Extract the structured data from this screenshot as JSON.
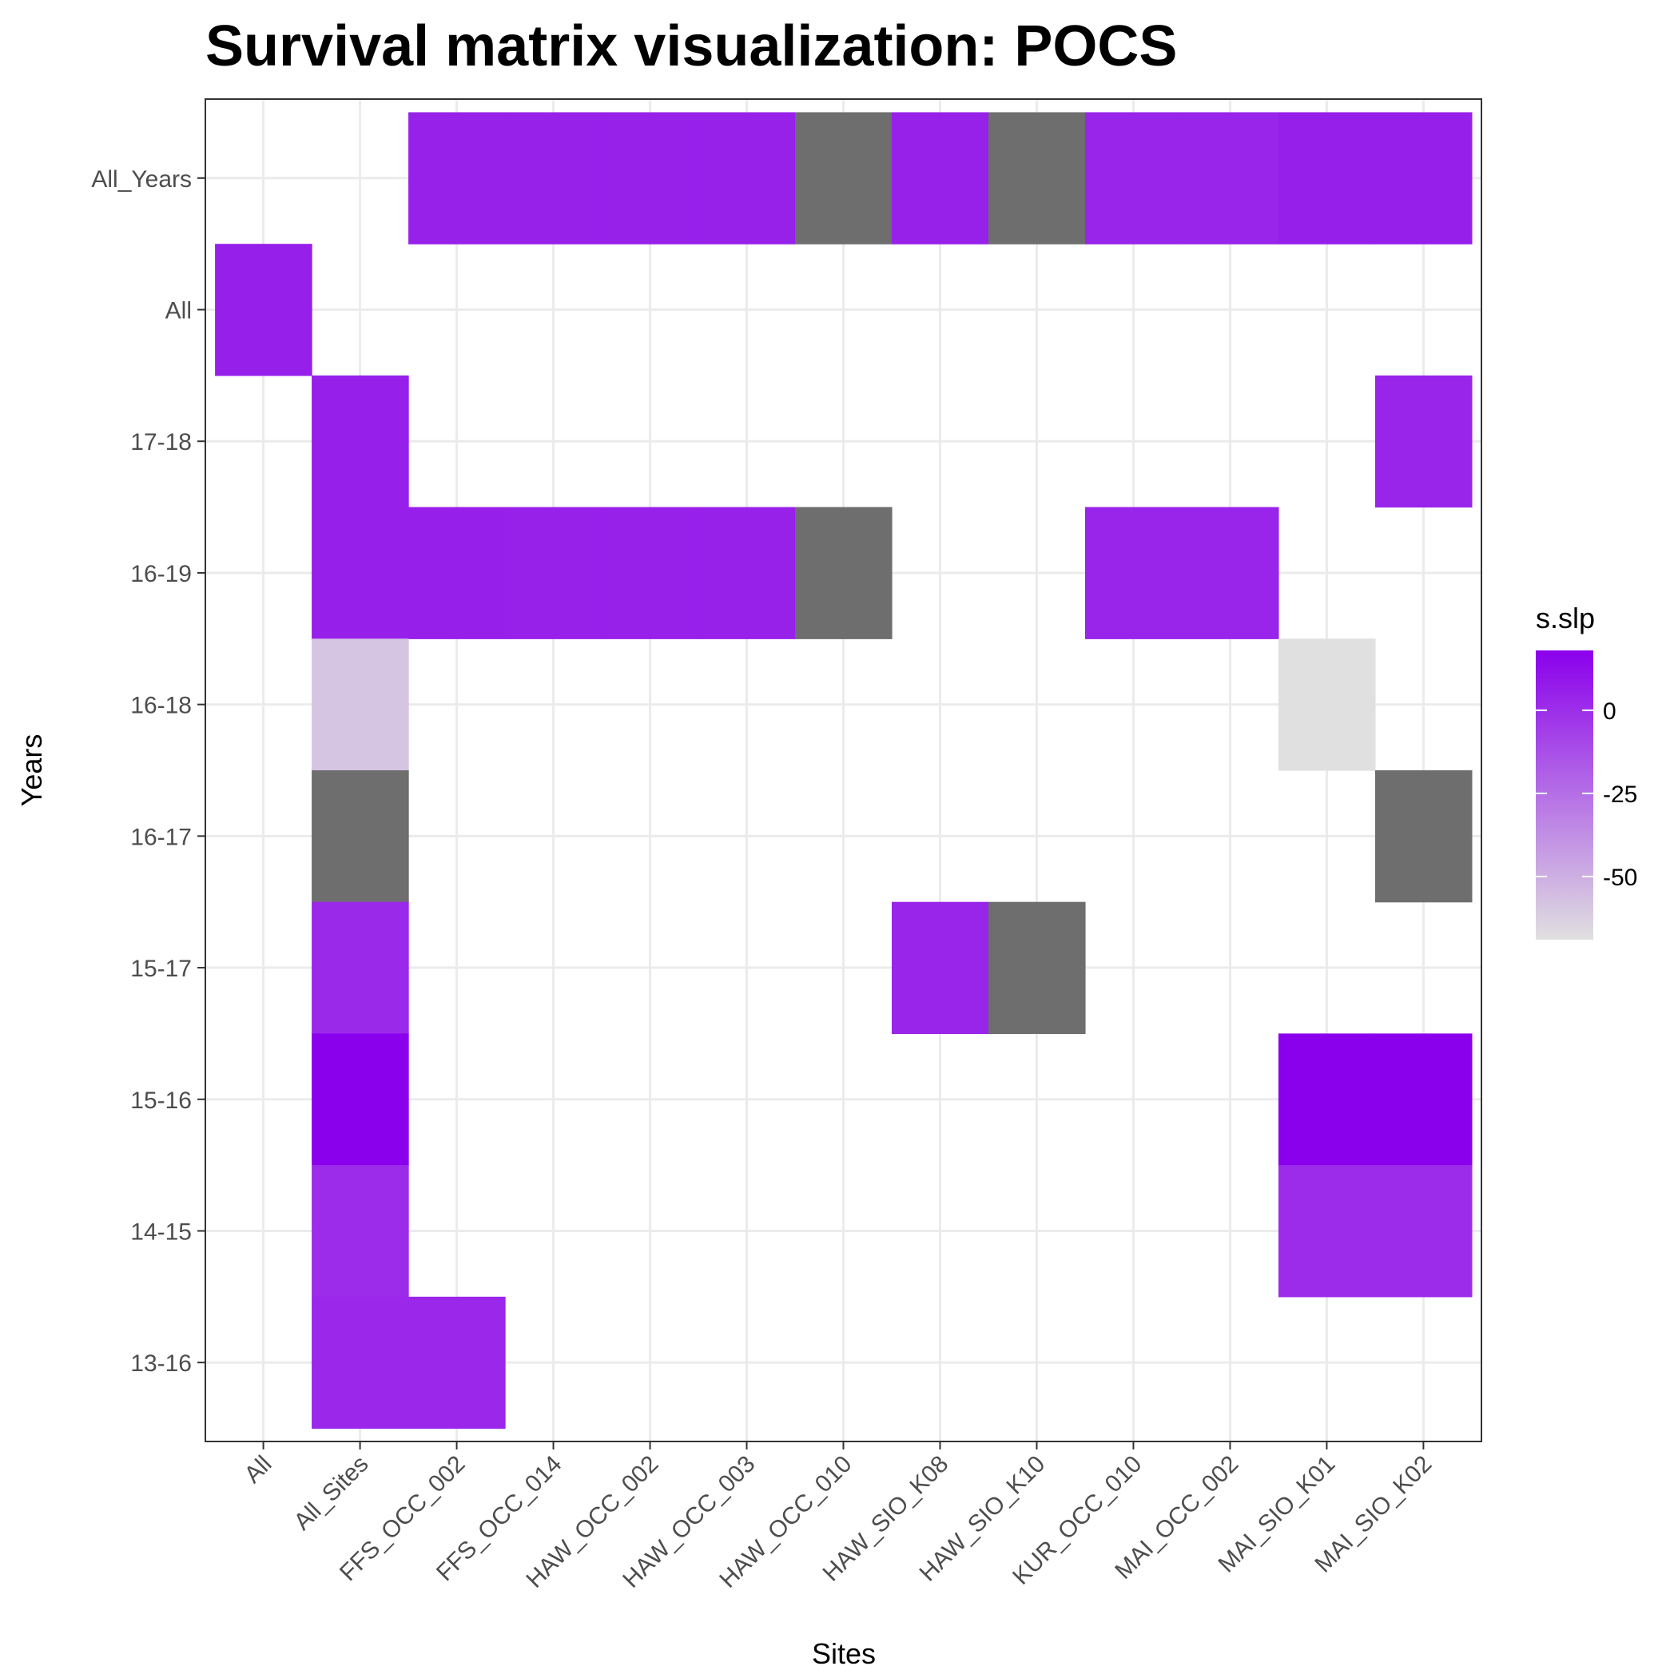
{
  "chart_data": {
    "type": "heatmap",
    "title": "Survival matrix visualization: POCS",
    "xlabel": "Sites",
    "ylabel": "Years",
    "x_categories": [
      "All",
      "All_Sites",
      "FFS_OCC_002",
      "FFS_OCC_014",
      "HAW_OCC_002",
      "HAW_OCC_003",
      "HAW_OCC_010",
      "HAW_SIO_K08",
      "HAW_SIO_K10",
      "KUR_OCC_010",
      "MAI_OCC_002",
      "MAI_SIO_K01",
      "MAI_SIO_K02"
    ],
    "y_categories": [
      "13-16",
      "14-15",
      "15-16",
      "15-17",
      "16-17",
      "16-18",
      "16-19",
      "17-18",
      "All",
      "All_Years"
    ],
    "legend": {
      "title": "s.slp",
      "breaks": [
        0,
        -25,
        -50
      ],
      "break_labels": [
        "0",
        "-25",
        "-50"
      ],
      "limits": [
        -69,
        18
      ],
      "low_color": "#e0e0e0",
      "high_color": "#8b00ec",
      "na_color": "#6e6e6e",
      "position": "right"
    },
    "grid": true,
    "cells": [
      {
        "x": "FFS_OCC_002",
        "y": "All_Years",
        "value": 5
      },
      {
        "x": "FFS_OCC_014",
        "y": "All_Years",
        "value": 5
      },
      {
        "x": "HAW_OCC_002",
        "y": "All_Years",
        "value": 5
      },
      {
        "x": "HAW_OCC_003",
        "y": "All_Years",
        "value": 5
      },
      {
        "x": "HAW_OCC_010",
        "y": "All_Years",
        "value": null
      },
      {
        "x": "HAW_SIO_K08",
        "y": "All_Years",
        "value": 5
      },
      {
        "x": "HAW_SIO_K10",
        "y": "All_Years",
        "value": null
      },
      {
        "x": "KUR_OCC_010",
        "y": "All_Years",
        "value": 4
      },
      {
        "x": "MAI_OCC_002",
        "y": "All_Years",
        "value": 4
      },
      {
        "x": "MAI_SIO_K01",
        "y": "All_Years",
        "value": 6
      },
      {
        "x": "MAI_SIO_K02",
        "y": "All_Years",
        "value": 6
      },
      {
        "x": "All",
        "y": "All",
        "value": 6
      },
      {
        "x": "All_Sites",
        "y": "17-18",
        "value": 6
      },
      {
        "x": "MAI_SIO_K02",
        "y": "17-18",
        "value": 4
      },
      {
        "x": "All_Sites",
        "y": "16-19",
        "value": 6
      },
      {
        "x": "FFS_OCC_002",
        "y": "16-19",
        "value": 6
      },
      {
        "x": "FFS_OCC_014",
        "y": "16-19",
        "value": 5
      },
      {
        "x": "HAW_OCC_002",
        "y": "16-19",
        "value": 5
      },
      {
        "x": "HAW_OCC_003",
        "y": "16-19",
        "value": 5
      },
      {
        "x": "HAW_OCC_010",
        "y": "16-19",
        "value": null
      },
      {
        "x": "KUR_OCC_010",
        "y": "16-19",
        "value": 4
      },
      {
        "x": "MAI_OCC_002",
        "y": "16-19",
        "value": 4
      },
      {
        "x": "All_Sites",
        "y": "16-18",
        "value": -58
      },
      {
        "x": "MAI_SIO_K01",
        "y": "16-18",
        "value": -69
      },
      {
        "x": "All_Sites",
        "y": "16-17",
        "value": null
      },
      {
        "x": "MAI_SIO_K02",
        "y": "16-17",
        "value": null
      },
      {
        "x": "All_Sites",
        "y": "15-17",
        "value": 2
      },
      {
        "x": "HAW_SIO_K08",
        "y": "15-17",
        "value": 4
      },
      {
        "x": "HAW_SIO_K10",
        "y": "15-17",
        "value": null
      },
      {
        "x": "All_Sites",
        "y": "15-16",
        "value": 18
      },
      {
        "x": "MAI_SIO_K01",
        "y": "15-16",
        "value": 18
      },
      {
        "x": "MAI_SIO_K02",
        "y": "15-16",
        "value": 18
      },
      {
        "x": "All_Sites",
        "y": "14-15",
        "value": 1
      },
      {
        "x": "MAI_SIO_K01",
        "y": "14-15",
        "value": 1
      },
      {
        "x": "MAI_SIO_K02",
        "y": "14-15",
        "value": 1
      },
      {
        "x": "All_Sites",
        "y": "13-16",
        "value": 3
      },
      {
        "x": "FFS_OCC_002",
        "y": "13-16",
        "value": 3
      }
    ]
  }
}
